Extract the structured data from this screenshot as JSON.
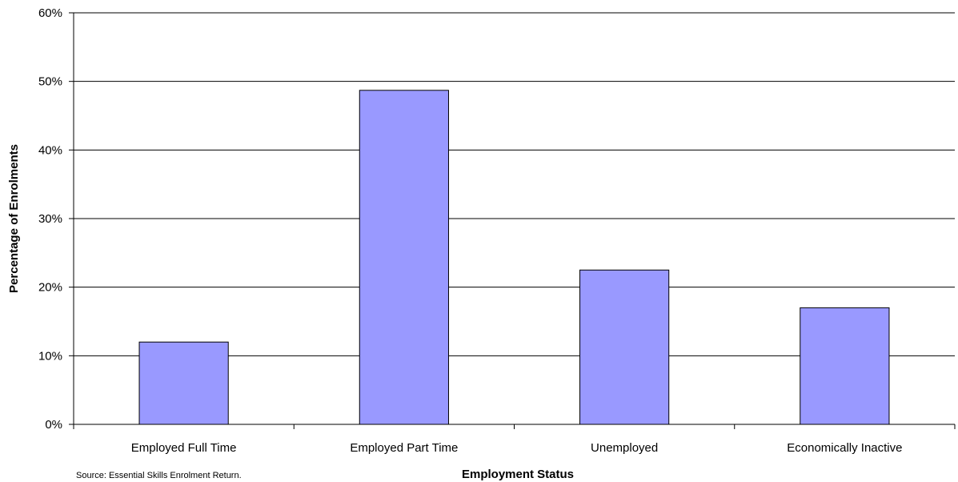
{
  "chart_data": {
    "type": "bar",
    "categories": [
      "Employed Full Time",
      "Employed Part Time",
      "Unemployed",
      "Economically Inactive"
    ],
    "values": [
      12,
      48.7,
      22.5,
      17
    ],
    "value_format": "percent",
    "xlabel": "Employment Status",
    "ylabel": "Percentage of Enrolments",
    "ylim": [
      0,
      60
    ],
    "yticks": [
      0,
      10,
      20,
      30,
      40,
      50,
      60
    ],
    "ytick_labels": [
      "0%",
      "10%",
      "20%",
      "30%",
      "40%",
      "50%",
      "60%"
    ],
    "grid": true,
    "legend": "none",
    "bar_color": "#9999ff"
  },
  "source_note": "Source: Essential Skills Enrolment Return."
}
